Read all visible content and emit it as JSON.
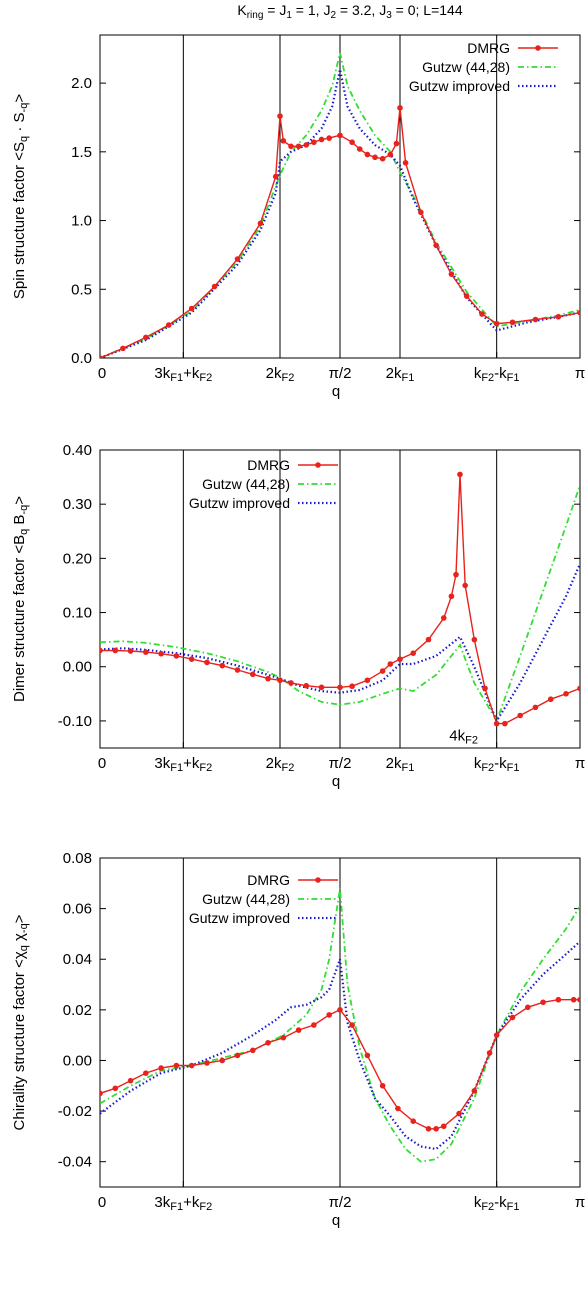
{
  "figure_title": "K_ring = J_1 = 1, J_2 = 3.2, J_3 = 0; L=144",
  "colors": {
    "dmrg": "#e8221c",
    "gutzw": "#33dd33",
    "gutzw_improved": "#1a1acc"
  },
  "chart_data": [
    {
      "type": "line",
      "ylabel": "Spin structure factor <S_q · S_-q>",
      "xlabel": "q",
      "xlim": [
        0,
        3.1416
      ],
      "ylim": [
        0,
        2.35
      ],
      "yticks": [
        "0.0",
        "0.5",
        "1.0",
        "1.5",
        "2.0"
      ],
      "ytick_values": [
        0,
        0.5,
        1.0,
        1.5,
        2.0
      ],
      "xticks": [
        "0",
        "3k_F1+k_F2",
        "2k_F2",
        "π/2",
        "2k_F1",
        "k_F2-k_F1",
        "π"
      ],
      "xtick_values": [
        0,
        0.5454,
        1.1781,
        1.5708,
        1.9635,
        2.5962,
        3.1416
      ],
      "vlines": [
        0.5454,
        1.1781,
        1.5708,
        1.9635,
        2.5962
      ],
      "annotations": [],
      "legend": {
        "position": "top-right",
        "entries": [
          "DMRG",
          "Gutzw (44,28)",
          "Gutzw improved"
        ]
      },
      "series": [
        {
          "name": "DMRG",
          "style": "line-points",
          "x": [
            0,
            0.15,
            0.3,
            0.45,
            0.6,
            0.75,
            0.9,
            1.05,
            1.15,
            1.1781,
            1.2,
            1.25,
            1.3,
            1.35,
            1.4,
            1.45,
            1.5,
            1.5708,
            1.65,
            1.7,
            1.75,
            1.8,
            1.85,
            1.9,
            1.94,
            1.9635,
            2.0,
            2.1,
            2.2,
            2.3,
            2.4,
            2.5,
            2.5962,
            2.7,
            2.85,
            3.0,
            3.1416
          ],
          "y": [
            0.0,
            0.07,
            0.15,
            0.24,
            0.36,
            0.52,
            0.72,
            0.98,
            1.32,
            1.76,
            1.58,
            1.54,
            1.54,
            1.55,
            1.57,
            1.59,
            1.6,
            1.62,
            1.57,
            1.52,
            1.48,
            1.46,
            1.45,
            1.48,
            1.56,
            1.82,
            1.42,
            1.06,
            0.82,
            0.61,
            0.45,
            0.32,
            0.25,
            0.26,
            0.28,
            0.3,
            0.33
          ]
        },
        {
          "name": "Gutzw (44,28)",
          "style": "dash-dot",
          "x": [
            0,
            0.3,
            0.6,
            0.9,
            1.05,
            1.15,
            1.1781,
            1.25,
            1.35,
            1.45,
            1.52,
            1.5708,
            1.62,
            1.7,
            1.8,
            1.9,
            1.9635,
            2.05,
            2.2,
            2.4,
            2.5962,
            2.8,
            3.0,
            3.1416
          ],
          "y": [
            0.0,
            0.14,
            0.34,
            0.7,
            0.96,
            1.25,
            1.33,
            1.5,
            1.62,
            1.8,
            1.98,
            2.22,
            1.98,
            1.8,
            1.62,
            1.5,
            1.35,
            1.18,
            0.84,
            0.48,
            0.23,
            0.27,
            0.31,
            0.35
          ]
        },
        {
          "name": "Gutzw improved",
          "style": "dotted",
          "x": [
            0,
            0.3,
            0.6,
            0.9,
            1.05,
            1.15,
            1.1781,
            1.25,
            1.35,
            1.45,
            1.52,
            1.5708,
            1.62,
            1.7,
            1.8,
            1.9,
            1.9635,
            2.05,
            2.2,
            2.4,
            2.5962,
            2.8,
            3.0,
            3.1416
          ],
          "y": [
            0.0,
            0.13,
            0.33,
            0.68,
            0.93,
            1.2,
            1.43,
            1.5,
            1.55,
            1.67,
            1.83,
            2.1,
            1.83,
            1.67,
            1.55,
            1.48,
            1.4,
            1.16,
            0.82,
            0.44,
            0.2,
            0.26,
            0.3,
            0.33
          ]
        }
      ]
    },
    {
      "type": "line",
      "ylabel": "Dimer structure factor <B_q B_-q>",
      "xlabel": "q",
      "xlim": [
        0,
        3.1416
      ],
      "ylim": [
        -0.15,
        0.4
      ],
      "yticks": [
        "-0.10",
        "0.00",
        "0.10",
        "0.20",
        "0.30",
        "0.40"
      ],
      "ytick_values": [
        -0.1,
        0.0,
        0.1,
        0.2,
        0.3,
        0.4
      ],
      "xticks": [
        "0",
        "3k_F1+k_F2",
        "2k_F2",
        "π/2",
        "2k_F1",
        "k_F2-k_F1",
        "π"
      ],
      "xtick_values": [
        0,
        0.5454,
        1.1781,
        1.5708,
        1.9635,
        2.5962,
        3.1416
      ],
      "vlines": [
        0.5454,
        1.1781,
        1.5708,
        1.9635,
        2.5962
      ],
      "annotations": [
        {
          "text": "4k_F2",
          "x": 2.38,
          "y": -0.125
        }
      ],
      "legend": {
        "position": "top-left",
        "entries": [
          "DMRG",
          "Gutzw (44,28)",
          "Gutzw improved"
        ]
      },
      "series": [
        {
          "name": "DMRG",
          "style": "line-points",
          "x": [
            0,
            0.1,
            0.2,
            0.3,
            0.4,
            0.5,
            0.6,
            0.7,
            0.8,
            0.9,
            1.0,
            1.1,
            1.1781,
            1.25,
            1.35,
            1.45,
            1.5708,
            1.65,
            1.75,
            1.85,
            1.9,
            1.9635,
            2.05,
            2.15,
            2.25,
            2.3,
            2.33,
            2.356,
            2.39,
            2.45,
            2.52,
            2.5962,
            2.65,
            2.75,
            2.85,
            2.95,
            3.05,
            3.1416
          ],
          "y": [
            0.03,
            0.03,
            0.029,
            0.027,
            0.024,
            0.02,
            0.014,
            0.008,
            0.002,
            -0.006,
            -0.014,
            -0.022,
            -0.025,
            -0.03,
            -0.035,
            -0.038,
            -0.038,
            -0.036,
            -0.025,
            -0.008,
            0.005,
            0.014,
            0.025,
            0.05,
            0.09,
            0.13,
            0.17,
            0.355,
            0.15,
            0.05,
            -0.04,
            -0.105,
            -0.105,
            -0.09,
            -0.075,
            -0.06,
            -0.05,
            -0.04
          ]
        },
        {
          "name": "Gutzw (44,28)",
          "style": "dash-dot",
          "x": [
            0,
            0.15,
            0.3,
            0.5,
            0.7,
            0.9,
            1.1,
            1.1781,
            1.3,
            1.45,
            1.5708,
            1.7,
            1.85,
            1.9635,
            2.05,
            2.2,
            2.356,
            2.45,
            2.5962,
            2.75,
            2.9,
            3.05,
            3.1416
          ],
          "y": [
            0.045,
            0.047,
            0.044,
            0.036,
            0.025,
            0.01,
            -0.01,
            -0.02,
            -0.045,
            -0.065,
            -0.07,
            -0.065,
            -0.05,
            -0.04,
            -0.045,
            -0.015,
            0.04,
            -0.03,
            -0.1,
            0.02,
            0.14,
            0.26,
            0.335
          ]
        },
        {
          "name": "Gutzw improved",
          "style": "dotted",
          "x": [
            0,
            0.15,
            0.3,
            0.5,
            0.7,
            0.9,
            1.1,
            1.1781,
            1.3,
            1.45,
            1.5708,
            1.7,
            1.85,
            1.9635,
            2.05,
            2.2,
            2.356,
            2.45,
            2.5962,
            2.75,
            2.9,
            3.05,
            3.1416
          ],
          "y": [
            0.032,
            0.034,
            0.031,
            0.025,
            0.016,
            0.002,
            -0.015,
            -0.022,
            -0.035,
            -0.045,
            -0.048,
            -0.043,
            -0.025,
            0.005,
            0.005,
            0.02,
            0.055,
            0.0,
            -0.1,
            -0.03,
            0.05,
            0.13,
            0.19
          ]
        }
      ]
    },
    {
      "type": "line",
      "ylabel": "Chirality structure factor <χ_q χ_-q>",
      "xlabel": "q",
      "xlim": [
        0,
        3.1416
      ],
      "ylim": [
        -0.05,
        0.08
      ],
      "yticks": [
        "-0.04",
        "-0.02",
        "0.00",
        "0.02",
        "0.04",
        "0.06",
        "0.08"
      ],
      "ytick_values": [
        -0.04,
        -0.02,
        0.0,
        0.02,
        0.04,
        0.06,
        0.08
      ],
      "xticks": [
        "0",
        "3k_F1+k_F2",
        "π/2",
        "k_F2-k_F1",
        "π"
      ],
      "xtick_values": [
        0,
        0.5454,
        1.5708,
        2.5962,
        3.1416
      ],
      "vlines": [
        0.5454,
        1.5708,
        2.5962
      ],
      "annotations": [],
      "legend": {
        "position": "top-left",
        "entries": [
          "DMRG",
          "Gutzw (44,28)",
          "Gutzw improved"
        ]
      },
      "series": [
        {
          "name": "DMRG",
          "style": "line-points",
          "x": [
            0,
            0.1,
            0.2,
            0.3,
            0.4,
            0.5,
            0.6,
            0.7,
            0.8,
            0.9,
            1.0,
            1.1,
            1.2,
            1.3,
            1.4,
            1.5,
            1.5708,
            1.65,
            1.75,
            1.85,
            1.95,
            2.05,
            2.15,
            2.2,
            2.25,
            2.35,
            2.45,
            2.55,
            2.5962,
            2.7,
            2.8,
            2.9,
            3.0,
            3.1,
            3.1416
          ],
          "y": [
            -0.013,
            -0.011,
            -0.008,
            -0.005,
            -0.003,
            -0.002,
            -0.002,
            -0.001,
            0.0,
            0.002,
            0.004,
            0.007,
            0.009,
            0.012,
            0.014,
            0.018,
            0.02,
            0.014,
            0.002,
            -0.01,
            -0.019,
            -0.024,
            -0.027,
            -0.027,
            -0.026,
            -0.021,
            -0.012,
            0.003,
            0.01,
            0.017,
            0.021,
            0.023,
            0.024,
            0.024,
            0.024
          ]
        },
        {
          "name": "Gutzw (44,28)",
          "style": "dash-dot",
          "x": [
            0,
            0.2,
            0.4,
            0.6,
            0.8,
            1.0,
            1.2,
            1.35,
            1.45,
            1.5,
            1.5708,
            1.62,
            1.7,
            1.8,
            1.9,
            2.0,
            2.1,
            2.2,
            2.3,
            2.45,
            2.5962,
            2.75,
            2.9,
            3.05,
            3.1416
          ],
          "y": [
            -0.017,
            -0.01,
            -0.004,
            -0.002,
            0.001,
            0.004,
            0.01,
            0.018,
            0.028,
            0.04,
            0.068,
            0.03,
            0.005,
            -0.015,
            -0.026,
            -0.035,
            -0.04,
            -0.039,
            -0.033,
            -0.015,
            0.01,
            0.027,
            0.04,
            0.052,
            0.061
          ]
        },
        {
          "name": "Gutzw improved",
          "style": "dotted",
          "x": [
            0,
            0.2,
            0.4,
            0.6,
            0.8,
            1.0,
            1.15,
            1.25,
            1.35,
            1.45,
            1.5,
            1.5708,
            1.62,
            1.7,
            1.8,
            1.9,
            2.0,
            2.1,
            2.2,
            2.3,
            2.45,
            2.5962,
            2.75,
            2.9,
            3.05,
            3.1416
          ],
          "y": [
            -0.021,
            -0.012,
            -0.005,
            -0.002,
            0.003,
            0.01,
            0.016,
            0.021,
            0.022,
            0.025,
            0.028,
            0.04,
            0.015,
            0.0,
            -0.015,
            -0.022,
            -0.03,
            -0.034,
            -0.035,
            -0.03,
            -0.012,
            0.01,
            0.024,
            0.034,
            0.042,
            0.047
          ]
        }
      ]
    }
  ]
}
